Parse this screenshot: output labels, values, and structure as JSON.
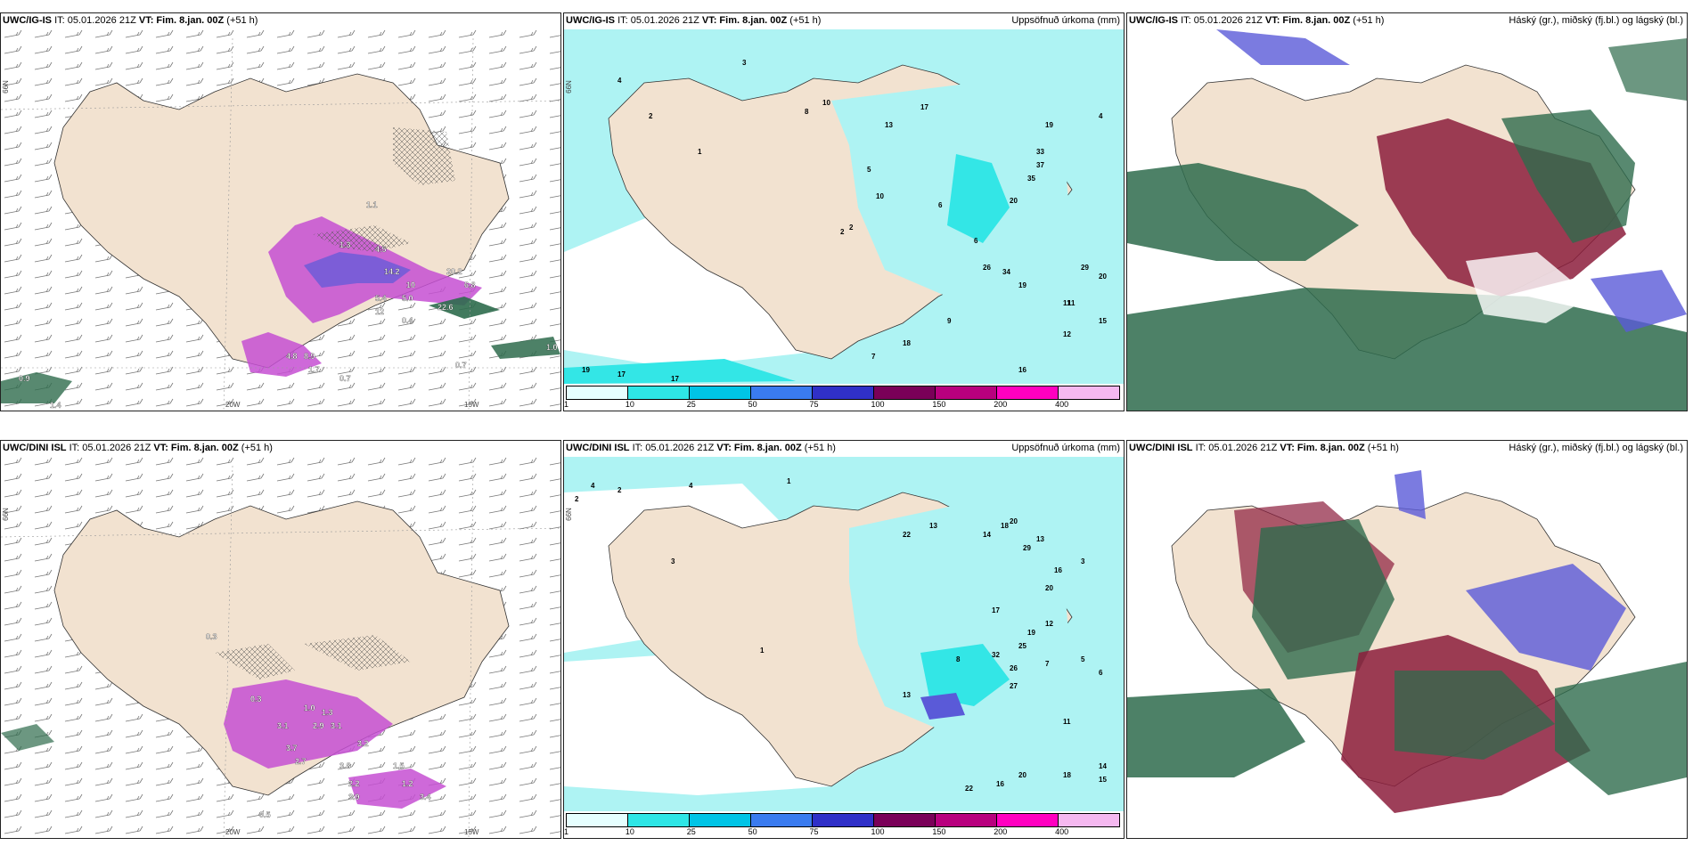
{
  "colors": {
    "land": "#f2e2d0",
    "sea": "#ffffff",
    "precip_light": "#aef3f3",
    "precip_mid": "#33e6e6",
    "magenta": "#c64fd2",
    "dark_green": "#2e6b4c",
    "dark_red": "#8c1d3c",
    "blue_violet": "#5a5ad8"
  },
  "panels": [
    {
      "id": "ig-wind",
      "model": "UWC/IG-IS",
      "it": "IT: 05.01.2026 21Z",
      "vt_label": "VT:",
      "vt": "Fim. 8.jan. 00Z",
      "lead": "(+51 h)",
      "right_title": "",
      "lat_label": "66N",
      "lon_labels": [
        "20W",
        "15W"
      ],
      "values": [
        "1.1",
        "1.1",
        "1.1",
        "1.3",
        "1.3",
        "1.8",
        "4.5",
        "14.2",
        "20.2",
        "10",
        "6.8",
        "5.4",
        "5.0",
        "12",
        "22.6",
        "4.8",
        "8.9",
        "1.7",
        "0.7",
        "0.7",
        "0.9",
        "1.4",
        "1.0",
        "0.4"
      ]
    },
    {
      "id": "ig-precip",
      "model": "UWC/IG-IS",
      "it": "IT: 05.01.2026 21Z",
      "vt_label": "VT:",
      "vt": "Fim. 8.jan. 00Z",
      "lead": "(+51 h)",
      "right_title": "Uppsöfnuð úrkoma (mm)",
      "lat_label": "66N",
      "values": [
        "4",
        "3",
        "2",
        "1",
        "8",
        "10",
        "17",
        "19",
        "13",
        "33",
        "37",
        "35",
        "20",
        "26",
        "34",
        "19",
        "29",
        "20",
        "11",
        "18",
        "16",
        "11",
        "19",
        "17",
        "17",
        "10",
        "9",
        "4",
        "5",
        "6",
        "7",
        "12",
        "15",
        "6",
        "2",
        "2"
      ],
      "scale": [
        "1",
        "10",
        "25",
        "50",
        "75",
        "100",
        "150",
        "200",
        "400"
      ]
    },
    {
      "id": "ig-cloud",
      "model": "UWC/IG-IS",
      "it": "IT: 05.01.2026 21Z",
      "vt_label": "VT:",
      "vt": "Fim. 8.jan. 00Z",
      "lead": "(+51 h)",
      "right_title": "Háský (gr.), miðský (fj.bl.) og lágský (bl.)"
    },
    {
      "id": "dini-wind",
      "model": "UWC/DINI ISL",
      "it": "IT: 05.01.2026 21Z",
      "vt_label": "VT:",
      "vt": "Fim. 8.jan. 00Z",
      "lead": "(+51 h)",
      "right_title": "",
      "lat_label": "66N",
      "lon_labels": [
        "20W",
        "15W"
      ],
      "values": [
        "0.3",
        "0.3",
        "1.0",
        "1.3",
        "3.1",
        "2.9",
        "3.1",
        "3.7",
        "3.2",
        "3.8",
        "1.5",
        "3.4",
        "1.2",
        "2.2",
        "0.5",
        "3.9",
        "2.7"
      ]
    },
    {
      "id": "dini-precip",
      "model": "UWC/DINI ISL",
      "it": "IT: 05.01.2026 21Z",
      "vt_label": "VT:",
      "vt": "Fim. 8.jan. 00Z",
      "lead": "(+51 h)",
      "right_title": "Uppsöfnuð úrkoma (mm)",
      "lat_label": "66N",
      "values": [
        "2",
        "4",
        "1",
        "3",
        "22",
        "13",
        "14",
        "18",
        "20",
        "29",
        "13",
        "16",
        "20",
        "32",
        "26",
        "25",
        "19",
        "17",
        "27",
        "13",
        "22",
        "16",
        "20",
        "18",
        "14",
        "15",
        "11",
        "12",
        "8",
        "7",
        "5",
        "6",
        "3",
        "1",
        "2",
        "4"
      ],
      "scale": [
        "1",
        "10",
        "25",
        "50",
        "75",
        "100",
        "150",
        "200",
        "400"
      ]
    },
    {
      "id": "dini-cloud",
      "model": "UWC/DINI ISL",
      "it": "IT: 05.01.2026 21Z",
      "vt_label": "VT:",
      "vt": "Fim. 8.jan. 00Z",
      "lead": "(+51 h)",
      "right_title": "Háský (gr.), miðský (fj.bl.) og lágský (bl.)"
    }
  ],
  "scale_colors": [
    "#e6ffff",
    "#2ee6e6",
    "#00c4e6",
    "#3a7bef",
    "#3030c8",
    "#7a0058",
    "#b8007e",
    "#ff00c0",
    "#f5b8f0"
  ]
}
